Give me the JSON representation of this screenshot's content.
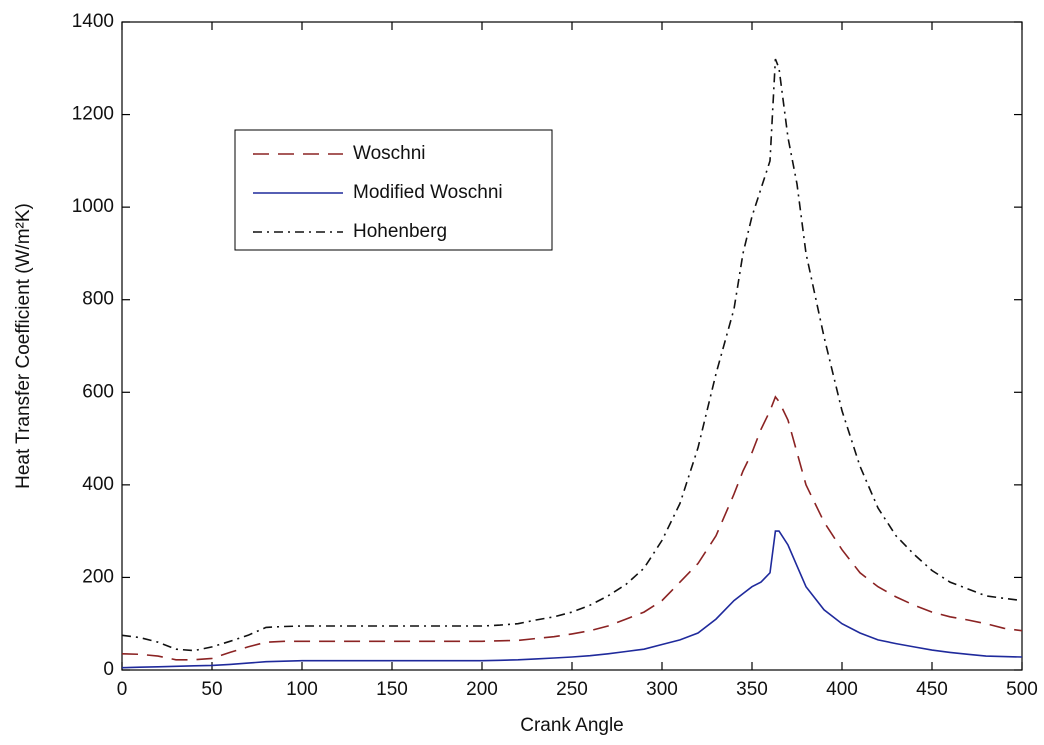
{
  "chart_data": {
    "type": "line",
    "xlabel": "Crank Angle",
    "ylabel": "Heat Transfer Coefficient (W/m²K)",
    "x": [
      0,
      10,
      20,
      30,
      40,
      50,
      60,
      70,
      80,
      90,
      100,
      110,
      120,
      130,
      140,
      150,
      160,
      170,
      180,
      190,
      200,
      210,
      220,
      230,
      240,
      250,
      260,
      270,
      280,
      290,
      300,
      310,
      320,
      330,
      340,
      345,
      350,
      355,
      360,
      363,
      365,
      370,
      375,
      380,
      390,
      400,
      410,
      420,
      430,
      440,
      450,
      460,
      470,
      480,
      490,
      500
    ],
    "series": [
      {
        "name": "Woschni",
        "color": "#8b2323",
        "dash": "16 9",
        "values": [
          35,
          34,
          30,
          22,
          22,
          25,
          38,
          50,
          60,
          62,
          62,
          62,
          62,
          62,
          62,
          62,
          62,
          62,
          62,
          62,
          62,
          63,
          64,
          68,
          72,
          78,
          85,
          95,
          110,
          125,
          150,
          190,
          230,
          290,
          380,
          430,
          470,
          520,
          560,
          590,
          580,
          540,
          470,
          400,
          320,
          260,
          210,
          180,
          158,
          140,
          125,
          115,
          108,
          100,
          90,
          85
        ]
      },
      {
        "name": "Modified Woschni",
        "color": "#1f2a9c",
        "dash": "none",
        "values": [
          5,
          6,
          7,
          8,
          9,
          10,
          12,
          15,
          18,
          19,
          20,
          20,
          20,
          20,
          20,
          20,
          20,
          20,
          20,
          20,
          20,
          21,
          22,
          24,
          26,
          28,
          31,
          35,
          40,
          45,
          55,
          65,
          80,
          110,
          150,
          165,
          180,
          190,
          210,
          300,
          300,
          270,
          225,
          180,
          130,
          100,
          80,
          65,
          57,
          50,
          43,
          38,
          34,
          30,
          29,
          28
        ]
      },
      {
        "name": "Hohenberg",
        "color": "#111111",
        "dash": "9 5 2 5",
        "values": [
          75,
          70,
          60,
          45,
          42,
          50,
          62,
          75,
          92,
          94,
          95,
          95,
          95,
          95,
          95,
          95,
          95,
          95,
          95,
          95,
          95,
          97,
          100,
          108,
          115,
          125,
          140,
          160,
          185,
          220,
          280,
          360,
          480,
          640,
          780,
          900,
          980,
          1040,
          1100,
          1320,
          1300,
          1150,
          1050,
          900,
          720,
          560,
          440,
          350,
          290,
          250,
          215,
          190,
          175,
          160,
          155,
          150
        ]
      }
    ],
    "xlim": [
      0,
      500
    ],
    "xticks": [
      0,
      50,
      100,
      150,
      200,
      250,
      300,
      350,
      400,
      450,
      500
    ],
    "ylim": [
      0,
      1400
    ],
    "yticks": [
      0,
      200,
      400,
      600,
      800,
      1000,
      1200,
      1400
    ],
    "grid": false,
    "legend": "upper left"
  }
}
